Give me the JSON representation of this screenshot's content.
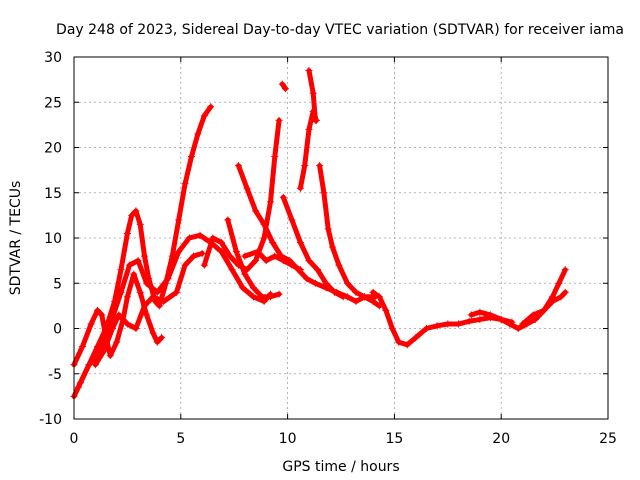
{
  "chart_data": {
    "type": "line",
    "title": "Day 248 of 2023, Sidereal Day-to-day VTEC variation (SDTVAR) for receiver iama",
    "xlabel": "GPS time / hours",
    "ylabel": "SDTVAR / TECUs",
    "xlim": [
      0,
      25
    ],
    "ylim": [
      -10,
      30
    ],
    "xticks": [
      0,
      5,
      10,
      15,
      20,
      25
    ],
    "yticks": [
      -10,
      -5,
      0,
      5,
      10,
      15,
      20,
      25,
      30
    ],
    "grid": true,
    "marker": "plus",
    "color": "#ff0000",
    "series": [
      {
        "name": "s1",
        "points": [
          [
            0.0,
            -4.0
          ],
          [
            0.4,
            -2.0
          ],
          [
            0.8,
            0.5
          ],
          [
            1.1,
            2.0
          ],
          [
            1.3,
            1.5
          ],
          [
            1.5,
            -1.0
          ],
          [
            1.7,
            -3.0
          ],
          [
            2.0,
            -1.5
          ],
          [
            2.3,
            1.0
          ],
          [
            2.5,
            3.5
          ],
          [
            2.8,
            6.0
          ],
          [
            3.1,
            4.0
          ],
          [
            3.4,
            1.5
          ],
          [
            3.7,
            -0.5
          ],
          [
            3.9,
            -1.5
          ],
          [
            4.1,
            -1.0
          ]
        ]
      },
      {
        "name": "s2",
        "points": [
          [
            0.0,
            -7.5
          ],
          [
            0.3,
            -6.0
          ],
          [
            0.7,
            -4.0
          ],
          [
            1.1,
            -2.0
          ],
          [
            1.5,
            0.0
          ],
          [
            1.9,
            3.0
          ],
          [
            2.2,
            6.5
          ],
          [
            2.5,
            10.5
          ],
          [
            2.7,
            12.5
          ],
          [
            2.9,
            13.0
          ],
          [
            3.1,
            11.5
          ],
          [
            3.3,
            8.0
          ],
          [
            3.5,
            5.5
          ],
          [
            3.8,
            3.0
          ],
          [
            4.0,
            2.5
          ],
          [
            4.3,
            5.0
          ],
          [
            4.6,
            8.0
          ],
          [
            4.9,
            12.0
          ],
          [
            5.2,
            16.0
          ],
          [
            5.5,
            19.0
          ],
          [
            5.8,
            21.5
          ],
          [
            6.1,
            23.5
          ],
          [
            6.4,
            24.5
          ]
        ]
      },
      {
        "name": "s3",
        "points": [
          [
            0.2,
            -6.5
          ],
          [
            0.7,
            -4.0
          ],
          [
            1.2,
            -2.5
          ],
          [
            1.7,
            0.5
          ],
          [
            2.2,
            4.0
          ],
          [
            2.6,
            7.0
          ],
          [
            3.0,
            7.5
          ],
          [
            3.4,
            5.0
          ],
          [
            3.9,
            4.0
          ],
          [
            4.4,
            5.5
          ],
          [
            4.9,
            8.5
          ],
          [
            5.4,
            10.0
          ],
          [
            5.9,
            10.3
          ],
          [
            6.4,
            9.5
          ],
          [
            6.9,
            8.5
          ],
          [
            7.4,
            6.5
          ],
          [
            7.9,
            4.5
          ],
          [
            8.4,
            3.5
          ],
          [
            8.9,
            3.0
          ],
          [
            9.2,
            3.8
          ]
        ]
      },
      {
        "name": "s4",
        "points": [
          [
            1.0,
            -4.0
          ],
          [
            1.4,
            -2.5
          ],
          [
            1.8,
            0.0
          ],
          [
            2.1,
            1.5
          ],
          [
            2.5,
            0.5
          ],
          [
            2.9,
            0.0
          ],
          [
            3.3,
            2.5
          ],
          [
            3.7,
            3.5
          ],
          [
            4.2,
            3.0
          ],
          [
            4.8,
            4.0
          ],
          [
            5.2,
            7.0
          ],
          [
            5.6,
            8.0
          ],
          [
            6.0,
            8.3
          ]
        ]
      },
      {
        "name": "s5",
        "points": [
          [
            6.1,
            7.0
          ],
          [
            6.5,
            10.0
          ],
          [
            6.9,
            9.5
          ],
          [
            7.3,
            8.0
          ],
          [
            7.7,
            7.0
          ],
          [
            8.1,
            6.5
          ],
          [
            8.5,
            7.5
          ],
          [
            8.9,
            10.0
          ],
          [
            9.2,
            14.0
          ],
          [
            9.4,
            19.0
          ],
          [
            9.6,
            23.0
          ]
        ]
      },
      {
        "name": "s6",
        "points": [
          [
            7.7,
            18.0
          ],
          [
            8.1,
            15.5
          ],
          [
            8.5,
            13.0
          ],
          [
            8.9,
            11.5
          ],
          [
            9.3,
            9.5
          ],
          [
            9.7,
            8.0
          ],
          [
            10.1,
            7.5
          ],
          [
            10.5,
            6.5
          ],
          [
            10.9,
            5.5
          ],
          [
            11.3,
            5.0
          ],
          [
            11.8,
            4.5
          ],
          [
            12.3,
            4.0
          ],
          [
            12.8,
            3.5
          ],
          [
            13.2,
            3.0
          ],
          [
            13.6,
            3.5
          ],
          [
            14.0,
            3.0
          ],
          [
            14.3,
            2.5
          ]
        ]
      },
      {
        "name": "s7",
        "points": [
          [
            7.2,
            12.0
          ],
          [
            7.6,
            8.5
          ],
          [
            8.0,
            6.0
          ],
          [
            8.4,
            4.5
          ],
          [
            8.8,
            3.5
          ],
          [
            9.2,
            3.5
          ],
          [
            9.6,
            3.8
          ]
        ]
      },
      {
        "name": "s8",
        "points": [
          [
            8.0,
            8.0
          ],
          [
            8.6,
            8.5
          ],
          [
            9.0,
            7.5
          ],
          [
            9.4,
            8.0
          ],
          [
            9.8,
            7.5
          ],
          [
            10.2,
            7.0
          ],
          [
            10.6,
            6.5
          ]
        ]
      },
      {
        "name": "s9",
        "points": [
          [
            9.75,
            27.0
          ],
          [
            9.9,
            26.5
          ]
        ]
      },
      {
        "name": "s10",
        "points": [
          [
            9.8,
            14.5
          ],
          [
            10.2,
            12.0
          ],
          [
            10.6,
            9.5
          ],
          [
            11.0,
            7.5
          ],
          [
            11.4,
            6.5
          ],
          [
            11.8,
            5.0
          ],
          [
            12.2,
            4.0
          ],
          [
            12.6,
            3.5
          ]
        ]
      },
      {
        "name": "s11",
        "points": [
          [
            10.6,
            15.5
          ],
          [
            10.8,
            18.0
          ],
          [
            11.0,
            22.0
          ],
          [
            11.2,
            24.0
          ],
          [
            11.35,
            23.0
          ]
        ]
      },
      {
        "name": "s12",
        "points": [
          [
            11.0,
            28.5
          ],
          [
            11.2,
            26.0
          ],
          [
            11.3,
            23.0
          ]
        ]
      },
      {
        "name": "s13",
        "points": [
          [
            11.5,
            18.0
          ],
          [
            11.7,
            15.0
          ],
          [
            11.9,
            11.0
          ],
          [
            12.1,
            9.0
          ],
          [
            12.4,
            7.0
          ],
          [
            12.8,
            5.0
          ],
          [
            13.2,
            4.0
          ],
          [
            13.6,
            3.5
          ],
          [
            14.1,
            3.5
          ]
        ]
      },
      {
        "name": "s14",
        "points": [
          [
            14.0,
            4.0
          ],
          [
            14.3,
            3.5
          ],
          [
            14.6,
            2.0
          ],
          [
            14.9,
            0.0
          ],
          [
            15.2,
            -1.5
          ],
          [
            15.6,
            -1.8
          ],
          [
            16.0,
            -1.0
          ],
          [
            16.5,
            0.0
          ],
          [
            17.0,
            0.3
          ],
          [
            17.5,
            0.5
          ],
          [
            18.0,
            0.5
          ],
          [
            18.5,
            0.8
          ],
          [
            19.0,
            1.0
          ],
          [
            19.5,
            1.2
          ],
          [
            20.0,
            1.0
          ],
          [
            20.5,
            0.7
          ]
        ]
      },
      {
        "name": "s15",
        "points": [
          [
            18.6,
            1.5
          ],
          [
            19.0,
            1.8
          ],
          [
            19.5,
            1.5
          ],
          [
            20.0,
            1.0
          ],
          [
            20.4,
            0.5
          ],
          [
            20.8,
            0.0
          ],
          [
            21.2,
            0.5
          ],
          [
            21.6,
            1.0
          ],
          [
            22.0,
            2.0
          ],
          [
            22.4,
            3.5
          ],
          [
            22.7,
            5.0
          ],
          [
            23.0,
            6.5
          ]
        ]
      },
      {
        "name": "s16",
        "points": [
          [
            21.0,
            0.5
          ],
          [
            21.5,
            1.5
          ],
          [
            22.0,
            2.0
          ],
          [
            22.4,
            3.0
          ],
          [
            22.8,
            3.5
          ],
          [
            23.0,
            4.0
          ]
        ]
      }
    ]
  }
}
